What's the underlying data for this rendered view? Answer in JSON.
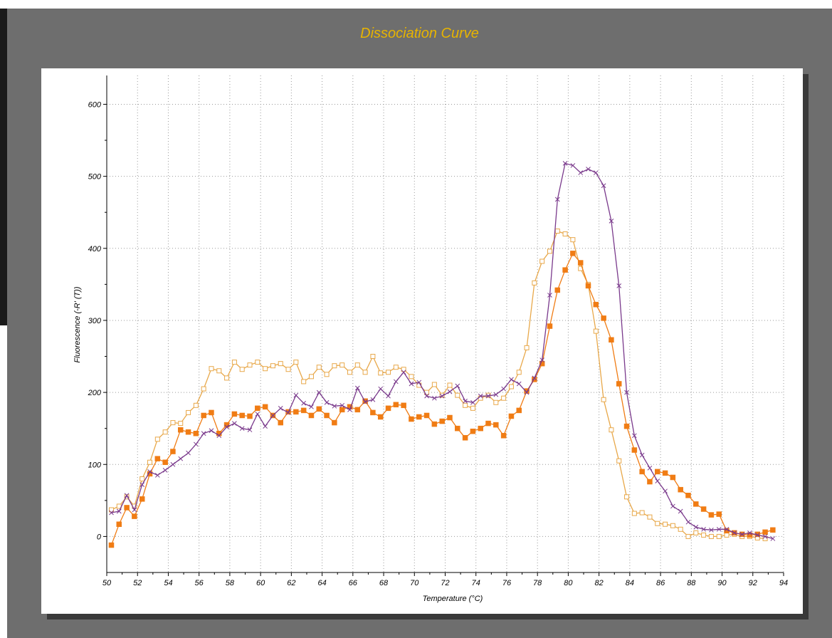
{
  "chart_data": {
    "type": "line",
    "title": "Dissociation Curve",
    "xlabel": "Temperature (°C)",
    "ylabel": "Fluorescence (-R' (T))",
    "xlim": [
      50,
      94
    ],
    "ylim": [
      -50,
      640
    ],
    "xticks": [
      50,
      52,
      54,
      56,
      58,
      60,
      62,
      64,
      66,
      68,
      70,
      72,
      74,
      76,
      78,
      80,
      82,
      84,
      86,
      88,
      90,
      92,
      94
    ],
    "yticks": [
      0,
      100,
      200,
      300,
      400,
      500,
      600
    ],
    "grid": true,
    "series": [
      {
        "color": "#e8a84a",
        "marker": "open-square",
        "points": [
          [
            50.3,
            37
          ],
          [
            50.8,
            42
          ],
          [
            51.3,
            55
          ],
          [
            51.8,
            42
          ],
          [
            52.3,
            80
          ],
          [
            52.8,
            103
          ],
          [
            53.3,
            135
          ],
          [
            53.8,
            145
          ],
          [
            54.3,
            158
          ],
          [
            54.8,
            157
          ],
          [
            55.3,
            172
          ],
          [
            55.8,
            182
          ],
          [
            56.3,
            205
          ],
          [
            56.8,
            233
          ],
          [
            57.3,
            230
          ],
          [
            57.8,
            220
          ],
          [
            58.3,
            242
          ],
          [
            58.8,
            232
          ],
          [
            59.3,
            238
          ],
          [
            59.8,
            242
          ],
          [
            60.3,
            233
          ],
          [
            60.8,
            237
          ],
          [
            61.3,
            240
          ],
          [
            61.8,
            232
          ],
          [
            62.3,
            242
          ],
          [
            62.8,
            215
          ],
          [
            63.3,
            222
          ],
          [
            63.8,
            235
          ],
          [
            64.3,
            225
          ],
          [
            64.8,
            237
          ],
          [
            65.3,
            238
          ],
          [
            65.8,
            228
          ],
          [
            66.3,
            238
          ],
          [
            66.8,
            228
          ],
          [
            67.3,
            250
          ],
          [
            67.8,
            227
          ],
          [
            68.3,
            228
          ],
          [
            68.8,
            235
          ],
          [
            69.3,
            232
          ],
          [
            69.8,
            222
          ],
          [
            70.3,
            210
          ],
          [
            70.8,
            200
          ],
          [
            71.3,
            211
          ],
          [
            71.8,
            196
          ],
          [
            72.3,
            210
          ],
          [
            72.8,
            196
          ],
          [
            73.3,
            182
          ],
          [
            73.8,
            178
          ],
          [
            74.3,
            192
          ],
          [
            74.8,
            196
          ],
          [
            75.3,
            186
          ],
          [
            75.8,
            192
          ],
          [
            76.3,
            208
          ],
          [
            76.8,
            228
          ],
          [
            77.3,
            262
          ],
          [
            77.8,
            352
          ],
          [
            78.3,
            382
          ],
          [
            78.8,
            396
          ],
          [
            79.3,
            424
          ],
          [
            79.8,
            420
          ],
          [
            80.3,
            412
          ],
          [
            80.8,
            372
          ],
          [
            81.3,
            350
          ],
          [
            81.8,
            285
          ],
          [
            82.3,
            190
          ],
          [
            82.8,
            148
          ],
          [
            83.3,
            105
          ],
          [
            83.8,
            55
          ],
          [
            84.3,
            32
          ],
          [
            84.8,
            33
          ],
          [
            85.3,
            27
          ],
          [
            85.8,
            18
          ],
          [
            86.3,
            17
          ],
          [
            86.8,
            15
          ],
          [
            87.3,
            10
          ],
          [
            87.8,
            0
          ],
          [
            88.3,
            5
          ],
          [
            88.8,
            2
          ],
          [
            89.3,
            0
          ],
          [
            89.8,
            0
          ],
          [
            90.3,
            2
          ],
          [
            90.8,
            3
          ],
          [
            91.3,
            0
          ],
          [
            91.8,
            0
          ],
          [
            92.3,
            -2
          ],
          [
            92.8,
            -3
          ]
        ]
      },
      {
        "color": "#f07c14",
        "marker": "filled-square",
        "points": [
          [
            50.3,
            -12
          ],
          [
            50.8,
            17
          ],
          [
            51.3,
            40
          ],
          [
            51.8,
            28
          ],
          [
            52.3,
            52
          ],
          [
            52.8,
            87
          ],
          [
            53.3,
            108
          ],
          [
            53.8,
            103
          ],
          [
            54.3,
            118
          ],
          [
            54.8,
            148
          ],
          [
            55.3,
            145
          ],
          [
            55.8,
            143
          ],
          [
            56.3,
            168
          ],
          [
            56.8,
            172
          ],
          [
            57.3,
            143
          ],
          [
            57.8,
            155
          ],
          [
            58.3,
            170
          ],
          [
            58.8,
            168
          ],
          [
            59.3,
            167
          ],
          [
            59.8,
            178
          ],
          [
            60.3,
            180
          ],
          [
            60.8,
            168
          ],
          [
            61.3,
            158
          ],
          [
            61.8,
            173
          ],
          [
            62.3,
            173
          ],
          [
            62.8,
            175
          ],
          [
            63.3,
            168
          ],
          [
            63.8,
            177
          ],
          [
            64.3,
            168
          ],
          [
            64.8,
            158
          ],
          [
            65.3,
            176
          ],
          [
            65.8,
            180
          ],
          [
            66.3,
            176
          ],
          [
            66.8,
            188
          ],
          [
            67.3,
            172
          ],
          [
            67.8,
            166
          ],
          [
            68.3,
            178
          ],
          [
            68.8,
            183
          ],
          [
            69.3,
            182
          ],
          [
            69.8,
            163
          ],
          [
            70.3,
            166
          ],
          [
            70.8,
            168
          ],
          [
            71.3,
            156
          ],
          [
            71.8,
            160
          ],
          [
            72.3,
            165
          ],
          [
            72.8,
            150
          ],
          [
            73.3,
            137
          ],
          [
            73.8,
            146
          ],
          [
            74.3,
            150
          ],
          [
            74.8,
            157
          ],
          [
            75.3,
            155
          ],
          [
            75.8,
            140
          ],
          [
            76.3,
            167
          ],
          [
            76.8,
            175
          ],
          [
            77.3,
            202
          ],
          [
            77.8,
            218
          ],
          [
            78.3,
            240
          ],
          [
            78.8,
            292
          ],
          [
            79.3,
            342
          ],
          [
            79.8,
            370
          ],
          [
            80.3,
            393
          ],
          [
            80.8,
            380
          ],
          [
            81.3,
            348
          ],
          [
            81.8,
            322
          ],
          [
            82.3,
            303
          ],
          [
            82.8,
            273
          ],
          [
            83.3,
            212
          ],
          [
            83.8,
            153
          ],
          [
            84.3,
            120
          ],
          [
            84.8,
            90
          ],
          [
            85.3,
            76
          ],
          [
            85.8,
            90
          ],
          [
            86.3,
            88
          ],
          [
            86.8,
            82
          ],
          [
            87.3,
            65
          ],
          [
            87.8,
            57
          ],
          [
            88.3,
            45
          ],
          [
            88.8,
            38
          ],
          [
            89.3,
            30
          ],
          [
            89.8,
            31
          ],
          [
            90.3,
            8
          ],
          [
            90.8,
            5
          ],
          [
            91.3,
            3
          ],
          [
            91.8,
            2
          ],
          [
            92.3,
            3
          ],
          [
            92.8,
            6
          ],
          [
            93.3,
            9
          ]
        ]
      },
      {
        "color": "#7a3a8c",
        "marker": "x",
        "points": [
          [
            50.3,
            33
          ],
          [
            50.8,
            35
          ],
          [
            51.3,
            57
          ],
          [
            51.8,
            37
          ],
          [
            52.3,
            72
          ],
          [
            52.8,
            90
          ],
          [
            53.3,
            85
          ],
          [
            53.8,
            92
          ],
          [
            54.3,
            100
          ],
          [
            54.8,
            108
          ],
          [
            55.3,
            116
          ],
          [
            55.8,
            128
          ],
          [
            56.3,
            143
          ],
          [
            56.8,
            147
          ],
          [
            57.3,
            140
          ],
          [
            57.8,
            152
          ],
          [
            58.3,
            157
          ],
          [
            58.8,
            150
          ],
          [
            59.3,
            148
          ],
          [
            59.8,
            170
          ],
          [
            60.3,
            153
          ],
          [
            60.8,
            168
          ],
          [
            61.3,
            178
          ],
          [
            61.8,
            172
          ],
          [
            62.3,
            196
          ],
          [
            62.8,
            185
          ],
          [
            63.3,
            180
          ],
          [
            63.8,
            200
          ],
          [
            64.3,
            186
          ],
          [
            64.8,
            181
          ],
          [
            65.3,
            182
          ],
          [
            65.8,
            176
          ],
          [
            66.3,
            206
          ],
          [
            66.8,
            187
          ],
          [
            67.3,
            190
          ],
          [
            67.8,
            205
          ],
          [
            68.3,
            195
          ],
          [
            68.8,
            215
          ],
          [
            69.3,
            228
          ],
          [
            69.8,
            212
          ],
          [
            70.3,
            214
          ],
          [
            70.8,
            195
          ],
          [
            71.3,
            192
          ],
          [
            71.8,
            195
          ],
          [
            72.3,
            201
          ],
          [
            72.8,
            209
          ],
          [
            73.3,
            188
          ],
          [
            73.8,
            186
          ],
          [
            74.3,
            195
          ],
          [
            74.8,
            195
          ],
          [
            75.3,
            197
          ],
          [
            75.8,
            205
          ],
          [
            76.3,
            218
          ],
          [
            76.8,
            212
          ],
          [
            77.3,
            200
          ],
          [
            77.8,
            220
          ],
          [
            78.3,
            245
          ],
          [
            78.8,
            335
          ],
          [
            79.3,
            468
          ],
          [
            79.8,
            518
          ],
          [
            80.3,
            515
          ],
          [
            80.8,
            505
          ],
          [
            81.3,
            510
          ],
          [
            81.8,
            505
          ],
          [
            82.3,
            487
          ],
          [
            82.8,
            438
          ],
          [
            83.3,
            348
          ],
          [
            83.8,
            200
          ],
          [
            84.3,
            140
          ],
          [
            84.8,
            113
          ],
          [
            85.3,
            95
          ],
          [
            85.8,
            77
          ],
          [
            86.3,
            63
          ],
          [
            86.8,
            42
          ],
          [
            87.3,
            35
          ],
          [
            87.8,
            20
          ],
          [
            88.3,
            13
          ],
          [
            88.8,
            10
          ],
          [
            89.3,
            9
          ],
          [
            89.8,
            10
          ],
          [
            90.3,
            10
          ],
          [
            90.8,
            5
          ],
          [
            91.3,
            3
          ],
          [
            91.8,
            5
          ],
          [
            92.3,
            2
          ],
          [
            92.8,
            0
          ],
          [
            93.3,
            -3
          ]
        ]
      }
    ]
  }
}
